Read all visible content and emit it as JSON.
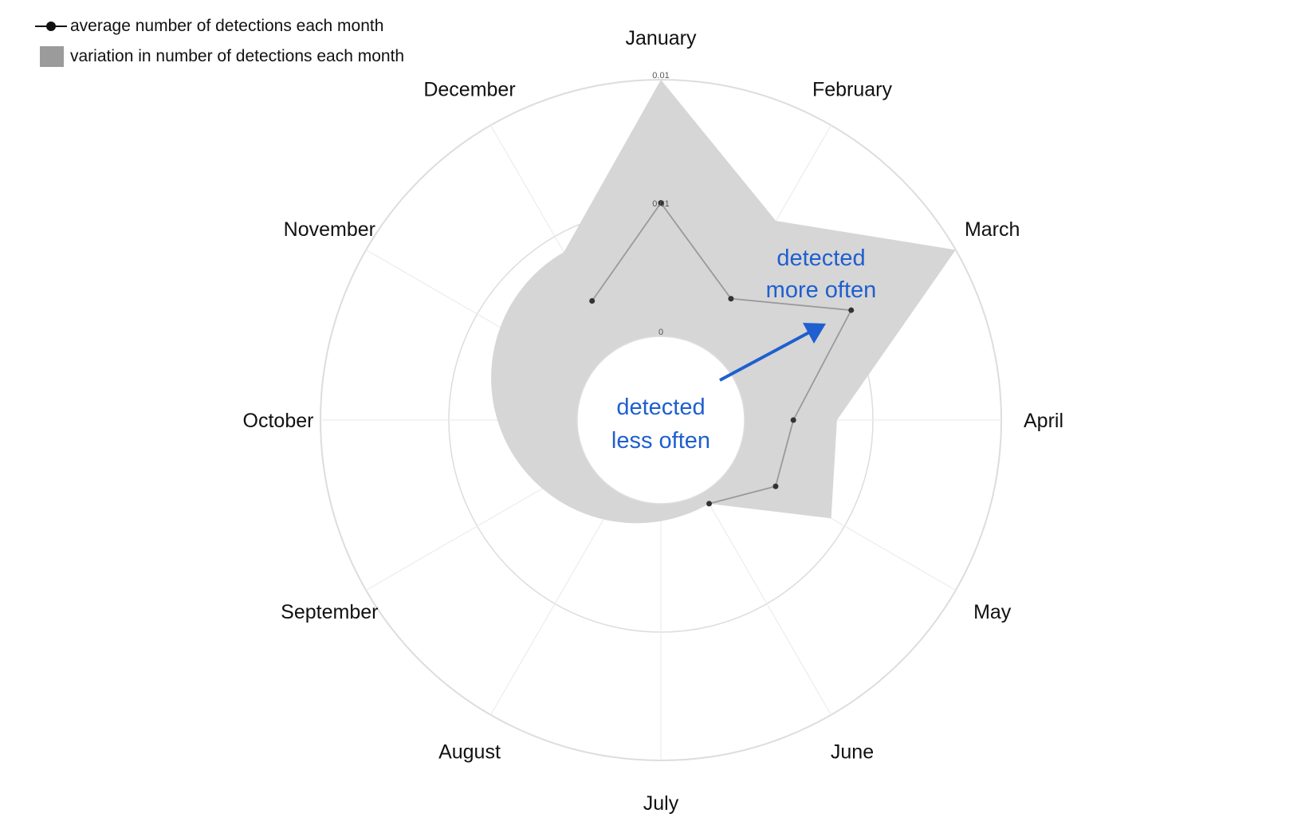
{
  "legend": {
    "line_label": "average number of detections each month",
    "area_label": "variation in number of detections each month"
  },
  "annotations": {
    "more_line1": "detected",
    "more_line2": "more often",
    "less_line1": "detected",
    "less_line2": "less often"
  },
  "chart_data": {
    "type": "radar",
    "categories": [
      "January",
      "February",
      "March",
      "April",
      "May",
      "June",
      "July",
      "August",
      "September",
      "October",
      "November",
      "December"
    ],
    "radial_tick_labels": [
      "0",
      "0.01",
      "0.01"
    ],
    "rlim": [
      0,
      0.01
    ],
    "series": [
      {
        "name": "average number of detections each month",
        "kind": "line",
        "values": [
          0.0052,
          0.0022,
          0.0053,
          0.0019,
          0.0019,
          0.0005,
          null,
          null,
          null,
          null,
          null,
          0.0021
        ]
      },
      {
        "name": "variation in number of detections each month",
        "kind": "area",
        "values": [
          0.01,
          0.0057,
          0.01,
          0.0036,
          0.0044,
          0.0005,
          null,
          null,
          null,
          null,
          null,
          0.0043
        ]
      }
    ],
    "colors": {
      "area": "#d6d6d6",
      "line": "#9a9a9a",
      "points": "#333333",
      "grid": "#dddddd",
      "spokes": "#ececec",
      "annotation": "#1f5fcf"
    },
    "legend_position": "top-left",
    "grid": true
  }
}
